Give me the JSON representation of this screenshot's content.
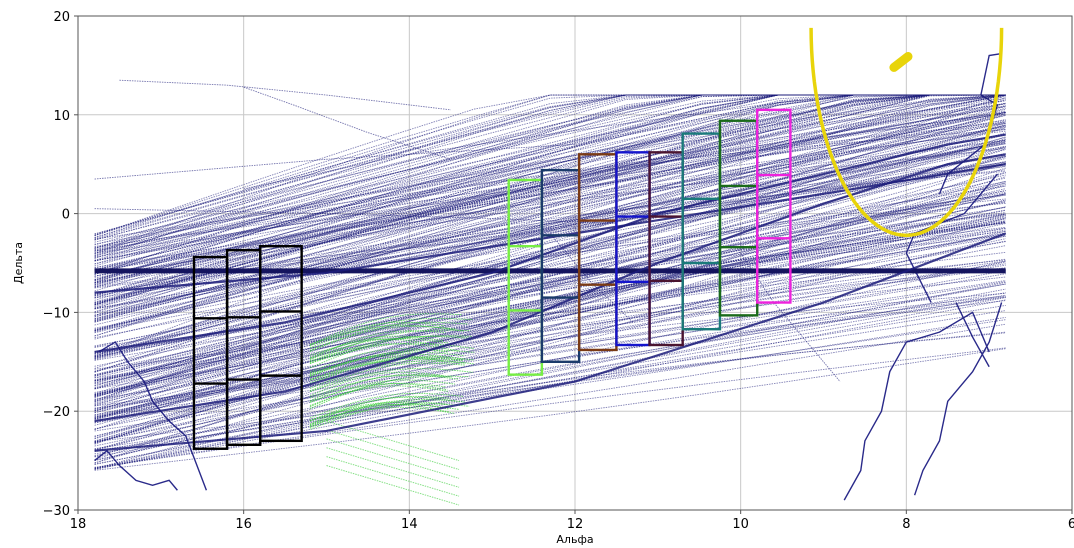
{
  "chart_data": {
    "type": "line",
    "title": "",
    "xlabel": "Альфа",
    "ylabel": "Дельта",
    "xlim": [
      18,
      6
    ],
    "ylim": [
      -30,
      20
    ],
    "x_reversed": true,
    "grid": true,
    "legend": "none",
    "x_ticks": [
      "18",
      "16",
      "14",
      "12",
      "10",
      "8",
      "6"
    ],
    "y_ticks": [
      "20",
      "10",
      "0",
      "−10",
      "−20",
      "−30"
    ],
    "x_tick_values": [
      18,
      16,
      14,
      12,
      10,
      8,
      6
    ],
    "y_tick_values": [
      20,
      10,
      0,
      -10,
      -20,
      -30
    ],
    "colors": {
      "tracks": "#1c1c7a",
      "green_tracks": "#33cc33",
      "coastline": "#2a2a8a",
      "ellipse": "#e8d40a",
      "grid": "#c8c8c8"
    },
    "series": [
      {
        "color": "#14145e",
        "x": [
          17.8,
          6.8
        ],
        "y": [
          -5.8,
          -5.8
        ]
      },
      {
        "color": "#1c1c7a",
        "x": [
          17.8,
          15.5,
          13,
          11,
          9,
          7.5,
          6.8
        ],
        "y": [
          -21,
          -18,
          -12,
          -5,
          1,
          5,
          6
        ]
      },
      {
        "color": "#1c1c7a",
        "x": [
          17.8,
          15.5,
          13,
          11,
          9,
          7.5,
          6.8
        ],
        "y": [
          -14,
          -11,
          -6,
          0,
          4,
          7,
          8
        ]
      },
      {
        "color": "#1c1c7a",
        "x": [
          17.8,
          15,
          12,
          9,
          6.8
        ],
        "y": [
          -8,
          -6,
          -2,
          2,
          5
        ]
      },
      {
        "color": "#1c1c7a",
        "x": [
          17.8,
          15,
          12,
          9,
          6.8
        ],
        "y": [
          -24,
          -22,
          -17,
          -9,
          -2
        ]
      }
    ],
    "boxes": [
      {
        "color": "#000000",
        "x": [
          16.6,
          16.2
        ],
        "y": [
          -23.8,
          -4.4
        ],
        "dividers": [
          -10.6,
          -17.2
        ]
      },
      {
        "color": "#000000",
        "x": [
          16.2,
          15.8
        ],
        "y": [
          -23.4,
          -3.7
        ],
        "dividers": [
          -10.5,
          -16.8
        ]
      },
      {
        "color": "#000000",
        "x": [
          15.8,
          15.3
        ],
        "y": [
          -23.0,
          -3.3
        ],
        "dividers": [
          -9.9,
          -16.4
        ]
      },
      {
        "color": "#77ee44",
        "x": [
          12.8,
          12.4
        ],
        "y": [
          -16.3,
          3.4
        ],
        "dividers": [
          -3.3,
          -9.8
        ]
      },
      {
        "color": "#1a3a6a",
        "x": [
          12.4,
          11.95
        ],
        "y": [
          -15.0,
          4.4
        ],
        "dividers": [
          -2.2,
          -8.5
        ]
      },
      {
        "color": "#7a3a14",
        "x": [
          11.95,
          11.5
        ],
        "y": [
          -13.8,
          6.0
        ],
        "dividers": [
          -0.7,
          -7.2
        ]
      },
      {
        "color": "#1414cc",
        "x": [
          11.5,
          11.1
        ],
        "y": [
          -13.3,
          6.2
        ],
        "dividers": [
          -0.3,
          -6.9
        ]
      },
      {
        "color": "#4a1430",
        "x": [
          11.1,
          10.7
        ],
        "y": [
          -13.3,
          6.2
        ],
        "dividers": [
          -0.3,
          -6.8
        ]
      },
      {
        "color": "#1a7a7a",
        "x": [
          10.7,
          10.25
        ],
        "y": [
          -11.7,
          8.1
        ],
        "dividers": [
          1.5,
          -5.0
        ]
      },
      {
        "color": "#1a6a1a",
        "x": [
          10.25,
          9.8
        ],
        "y": [
          -10.3,
          9.4
        ],
        "dividers": [
          2.8,
          -3.4
        ]
      },
      {
        "color": "#ee22dd",
        "x": [
          9.8,
          9.4
        ],
        "y": [
          -9.0,
          10.5
        ],
        "dividers": [
          3.9,
          -2.5
        ]
      }
    ]
  }
}
